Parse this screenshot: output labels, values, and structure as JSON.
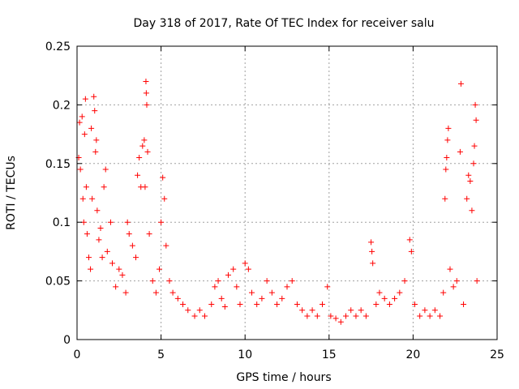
{
  "chart_data": {
    "type": "scatter",
    "title": "Day 318 of 2017, Rate Of TEC Index for receiver salu",
    "xlabel": "GPS time / hours",
    "ylabel": "ROTI / TECUs",
    "xlim": [
      0,
      25
    ],
    "ylim": [
      0,
      0.25
    ],
    "xticks": [
      0,
      5,
      10,
      15,
      20,
      25
    ],
    "xtick_labels": [
      "0",
      "5",
      "10",
      "15",
      "20",
      "25"
    ],
    "yticks": [
      0,
      0.05,
      0.1,
      0.15,
      0.2,
      0.25
    ],
    "ytick_labels": [
      "0",
      "0.05",
      "0.1",
      "0.15",
      "0.2",
      "0.25"
    ],
    "grid": true,
    "marker": "+",
    "color": "#ff0000",
    "series": [
      {
        "name": "ROTI",
        "points": [
          [
            0.1,
            0.155
          ],
          [
            0.15,
            0.185
          ],
          [
            0.2,
            0.145
          ],
          [
            0.3,
            0.19
          ],
          [
            0.35,
            0.12
          ],
          [
            0.4,
            0.1
          ],
          [
            0.45,
            0.175
          ],
          [
            0.5,
            0.205
          ],
          [
            0.55,
            0.13
          ],
          [
            0.6,
            0.09
          ],
          [
            0.7,
            0.07
          ],
          [
            0.8,
            0.06
          ],
          [
            0.85,
            0.18
          ],
          [
            0.9,
            0.12
          ],
          [
            1.0,
            0.207
          ],
          [
            1.05,
            0.195
          ],
          [
            1.1,
            0.16
          ],
          [
            1.15,
            0.17
          ],
          [
            1.2,
            0.11
          ],
          [
            1.3,
            0.085
          ],
          [
            1.4,
            0.095
          ],
          [
            1.5,
            0.07
          ],
          [
            1.6,
            0.13
          ],
          [
            1.7,
            0.145
          ],
          [
            1.8,
            0.075
          ],
          [
            2.0,
            0.1
          ],
          [
            2.1,
            0.065
          ],
          [
            2.3,
            0.045
          ],
          [
            2.5,
            0.06
          ],
          [
            2.7,
            0.055
          ],
          [
            2.9,
            0.04
          ],
          [
            3.0,
            0.1
          ],
          [
            3.1,
            0.09
          ],
          [
            3.3,
            0.08
          ],
          [
            3.5,
            0.07
          ],
          [
            3.6,
            0.14
          ],
          [
            3.7,
            0.155
          ],
          [
            3.8,
            0.13
          ],
          [
            3.9,
            0.165
          ],
          [
            4.0,
            0.17
          ],
          [
            4.05,
            0.13
          ],
          [
            4.1,
            0.22
          ],
          [
            4.12,
            0.21
          ],
          [
            4.15,
            0.2
          ],
          [
            4.2,
            0.16
          ],
          [
            4.3,
            0.09
          ],
          [
            4.5,
            0.05
          ],
          [
            4.7,
            0.04
          ],
          [
            4.9,
            0.06
          ],
          [
            5.0,
            0.1
          ],
          [
            5.1,
            0.138
          ],
          [
            5.2,
            0.12
          ],
          [
            5.3,
            0.08
          ],
          [
            5.5,
            0.05
          ],
          [
            5.7,
            0.04
          ],
          [
            6.0,
            0.035
          ],
          [
            6.3,
            0.03
          ],
          [
            6.6,
            0.025
          ],
          [
            7.0,
            0.02
          ],
          [
            7.3,
            0.025
          ],
          [
            7.6,
            0.02
          ],
          [
            8.0,
            0.03
          ],
          [
            8.2,
            0.045
          ],
          [
            8.4,
            0.05
          ],
          [
            8.6,
            0.035
          ],
          [
            8.8,
            0.028
          ],
          [
            9.0,
            0.055
          ],
          [
            9.3,
            0.06
          ],
          [
            9.5,
            0.045
          ],
          [
            9.7,
            0.03
          ],
          [
            10.0,
            0.065
          ],
          [
            10.2,
            0.06
          ],
          [
            10.4,
            0.04
          ],
          [
            10.7,
            0.03
          ],
          [
            11.0,
            0.035
          ],
          [
            11.3,
            0.05
          ],
          [
            11.6,
            0.04
          ],
          [
            11.9,
            0.03
          ],
          [
            12.2,
            0.035
          ],
          [
            12.5,
            0.045
          ],
          [
            12.8,
            0.05
          ],
          [
            13.1,
            0.03
          ],
          [
            13.4,
            0.025
          ],
          [
            13.7,
            0.02
          ],
          [
            14.0,
            0.025
          ],
          [
            14.3,
            0.02
          ],
          [
            14.6,
            0.03
          ],
          [
            14.9,
            0.045
          ],
          [
            15.1,
            0.02
          ],
          [
            15.4,
            0.018
          ],
          [
            15.7,
            0.015
          ],
          [
            16.0,
            0.02
          ],
          [
            16.3,
            0.025
          ],
          [
            16.6,
            0.02
          ],
          [
            16.9,
            0.025
          ],
          [
            17.2,
            0.02
          ],
          [
            17.5,
            0.083
          ],
          [
            17.55,
            0.075
          ],
          [
            17.6,
            0.065
          ],
          [
            17.8,
            0.03
          ],
          [
            18.0,
            0.04
          ],
          [
            18.3,
            0.035
          ],
          [
            18.6,
            0.03
          ],
          [
            18.9,
            0.035
          ],
          [
            19.2,
            0.04
          ],
          [
            19.5,
            0.05
          ],
          [
            19.8,
            0.085
          ],
          [
            19.9,
            0.075
          ],
          [
            20.1,
            0.03
          ],
          [
            20.4,
            0.02
          ],
          [
            20.7,
            0.025
          ],
          [
            21.0,
            0.02
          ],
          [
            21.3,
            0.025
          ],
          [
            21.6,
            0.02
          ],
          [
            21.8,
            0.04
          ],
          [
            21.9,
            0.12
          ],
          [
            21.95,
            0.145
          ],
          [
            22.0,
            0.155
          ],
          [
            22.05,
            0.17
          ],
          [
            22.1,
            0.18
          ],
          [
            22.2,
            0.06
          ],
          [
            22.4,
            0.045
          ],
          [
            22.6,
            0.05
          ],
          [
            22.8,
            0.16
          ],
          [
            22.85,
            0.218
          ],
          [
            23.0,
            0.03
          ],
          [
            23.2,
            0.12
          ],
          [
            23.3,
            0.14
          ],
          [
            23.4,
            0.135
          ],
          [
            23.5,
            0.11
          ],
          [
            23.6,
            0.15
          ],
          [
            23.65,
            0.165
          ],
          [
            23.7,
            0.2
          ],
          [
            23.75,
            0.187
          ],
          [
            23.8,
            0.05
          ]
        ]
      }
    ]
  }
}
